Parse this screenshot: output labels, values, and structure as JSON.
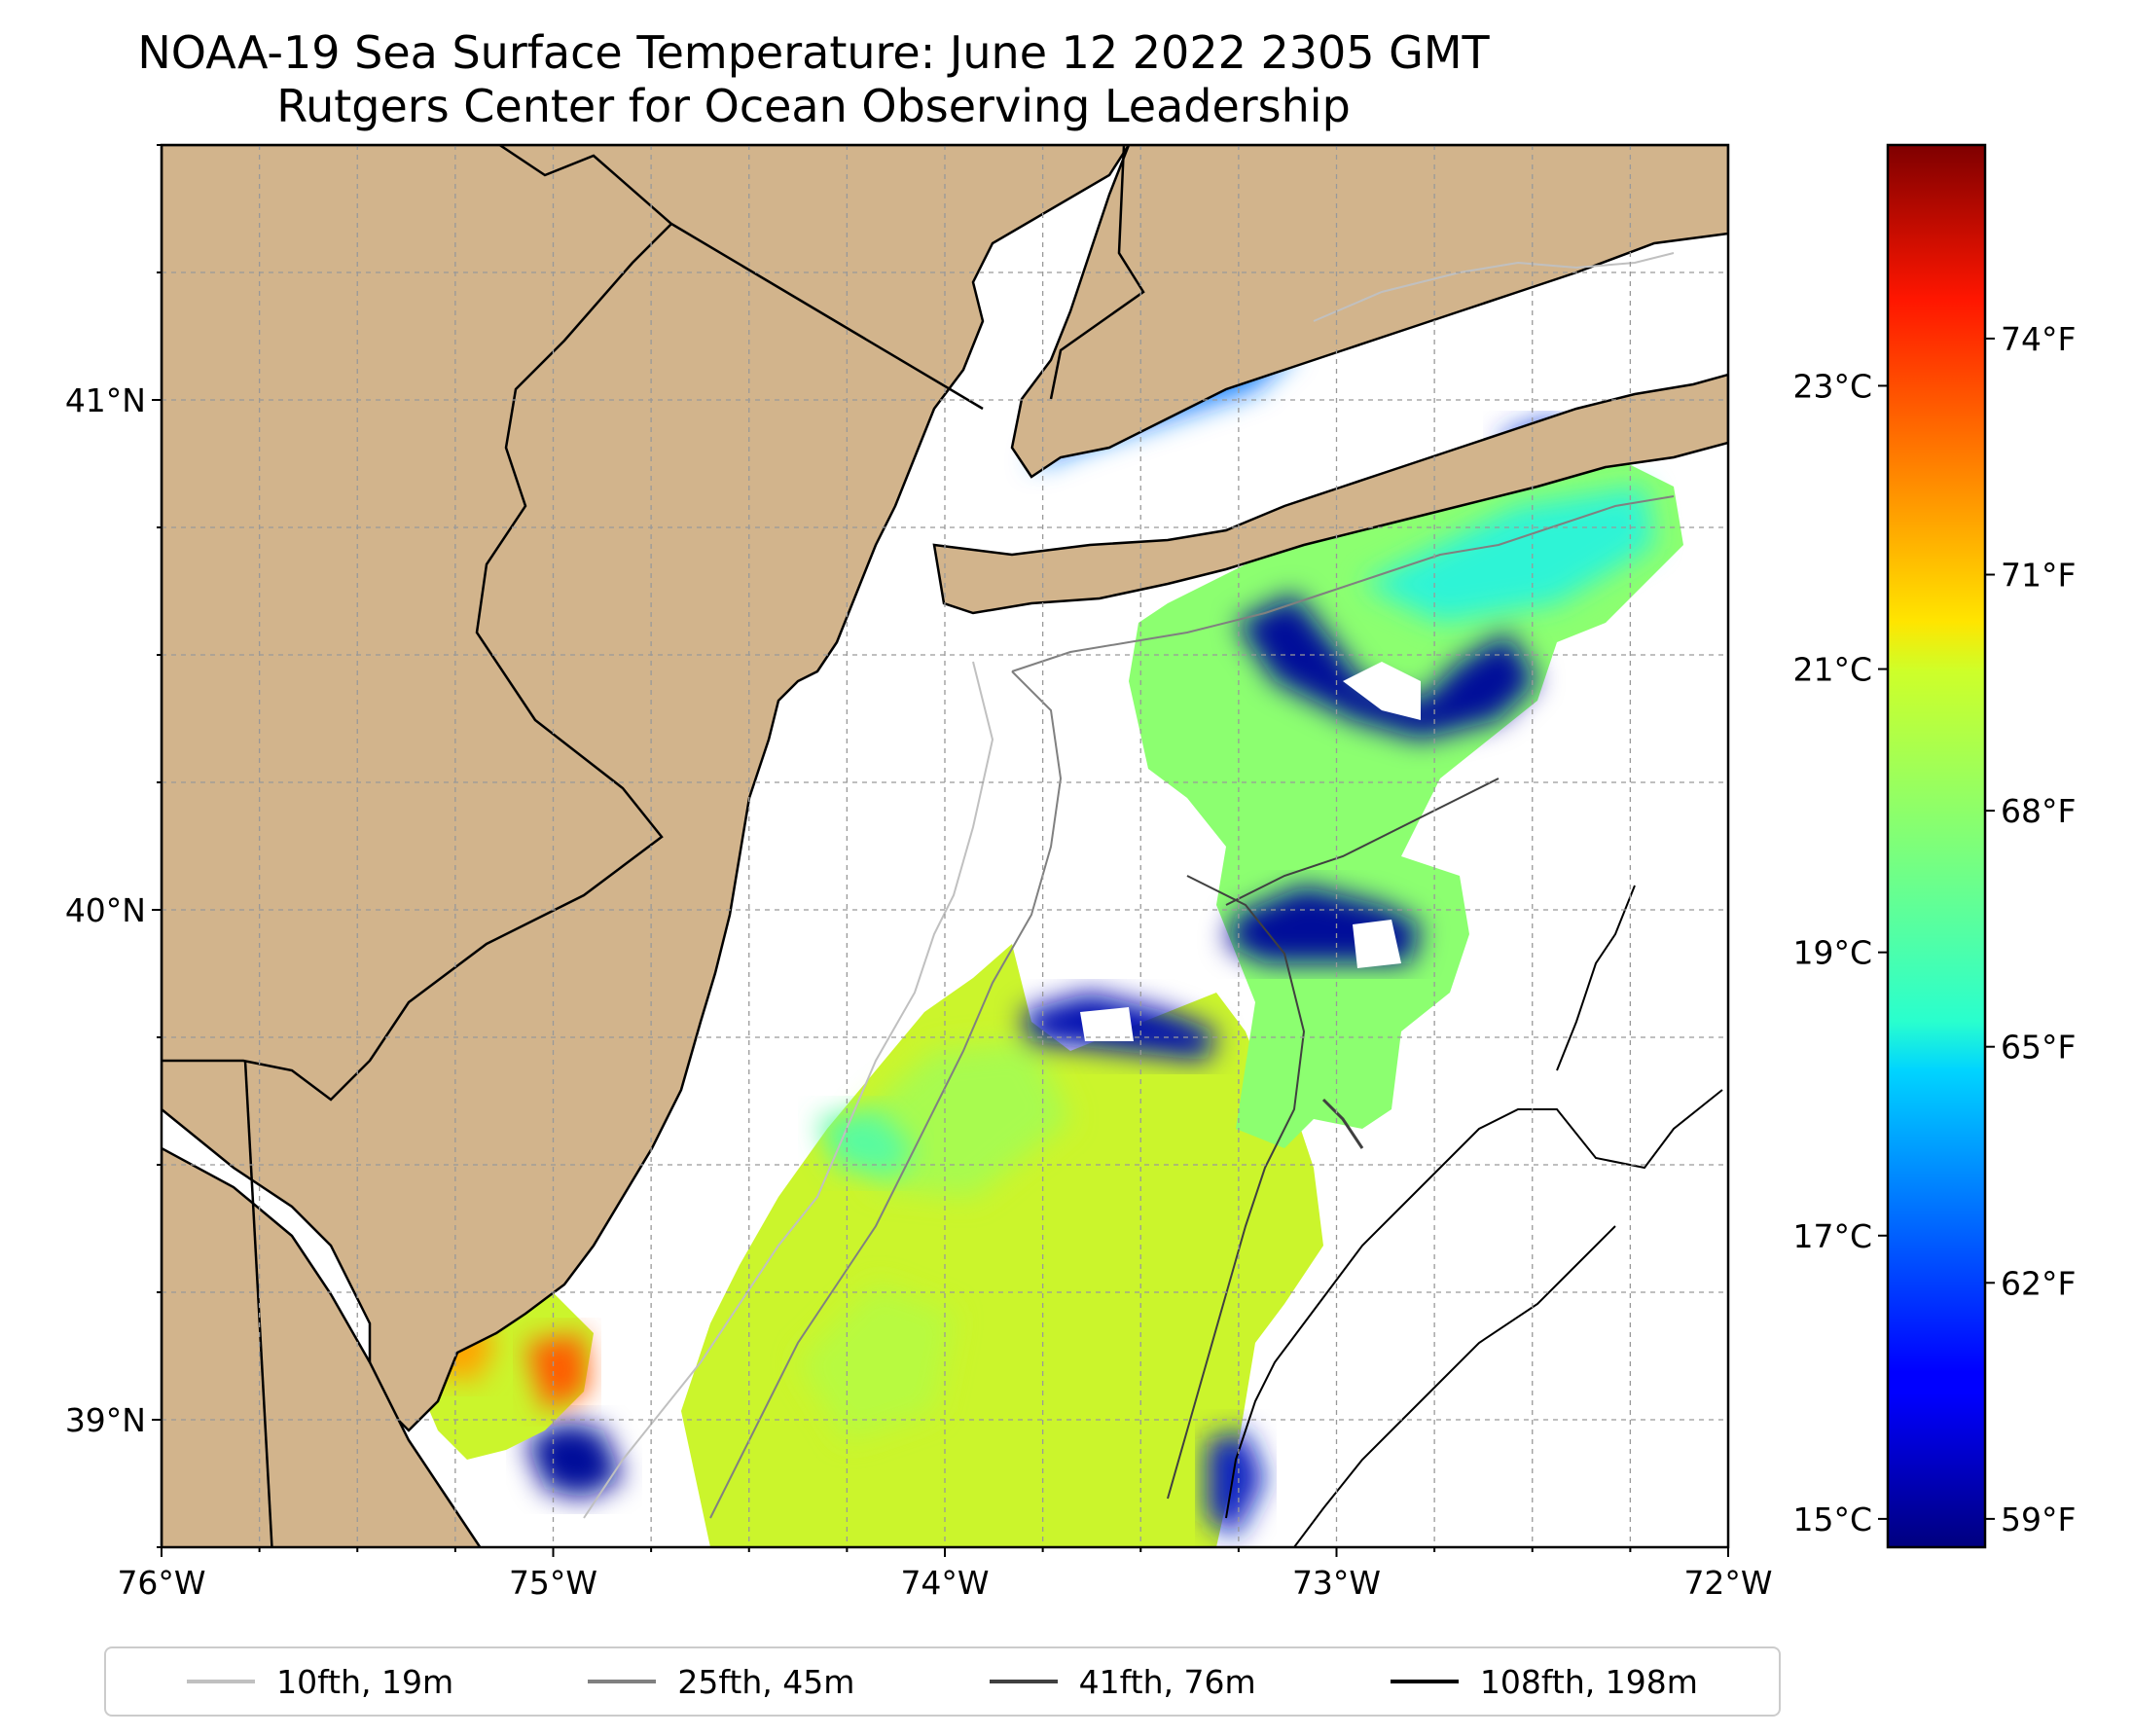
{
  "title": {
    "line1": "NOAA-19 Sea Surface Temperature: June 12 2022 2305 GMT",
    "line2": "Rutgers Center for Ocean Observing Leadership"
  },
  "map": {
    "lon_range": [
      -76,
      -72
    ],
    "lat_range": [
      38.75,
      41.5
    ],
    "x_ticks": [
      {
        "value": -76,
        "label": "76°W"
      },
      {
        "value": -75,
        "label": "75°W"
      },
      {
        "value": -74,
        "label": "74°W"
      },
      {
        "value": -73,
        "label": "73°W"
      },
      {
        "value": -72,
        "label": "72°W"
      }
    ],
    "y_ticks": [
      {
        "value": 39,
        "label": "39°N"
      },
      {
        "value": 40,
        "label": "40°N"
      },
      {
        "value": 41,
        "label": "41°N"
      }
    ],
    "gridlines": true,
    "land_color": "#d2b48c",
    "colormap": "jet"
  },
  "colorbar": {
    "celsius_ticks": [
      {
        "value": 15,
        "label": "15°C"
      },
      {
        "value": 17,
        "label": "17°C"
      },
      {
        "value": 19,
        "label": "19°C"
      },
      {
        "value": 21,
        "label": "21°C"
      },
      {
        "value": 23,
        "label": "23°C"
      }
    ],
    "fahrenheit_ticks": [
      {
        "value": 59,
        "label": "59°F"
      },
      {
        "value": 62,
        "label": "62°F"
      },
      {
        "value": 65,
        "label": "65°F"
      },
      {
        "value": 68,
        "label": "68°F"
      },
      {
        "value": 71,
        "label": "71°F"
      },
      {
        "value": 74,
        "label": "74°F"
      }
    ],
    "range_c": [
      14.8,
      24.7
    ]
  },
  "legend": {
    "entries": [
      {
        "label": "10fth, 19m",
        "color": "#c0c0c0"
      },
      {
        "label": "25fth, 45m",
        "color": "#808080"
      },
      {
        "label": "41fth, 76m",
        "color": "#404040"
      },
      {
        "label": "108fth, 198m",
        "color": "#000000"
      }
    ]
  }
}
